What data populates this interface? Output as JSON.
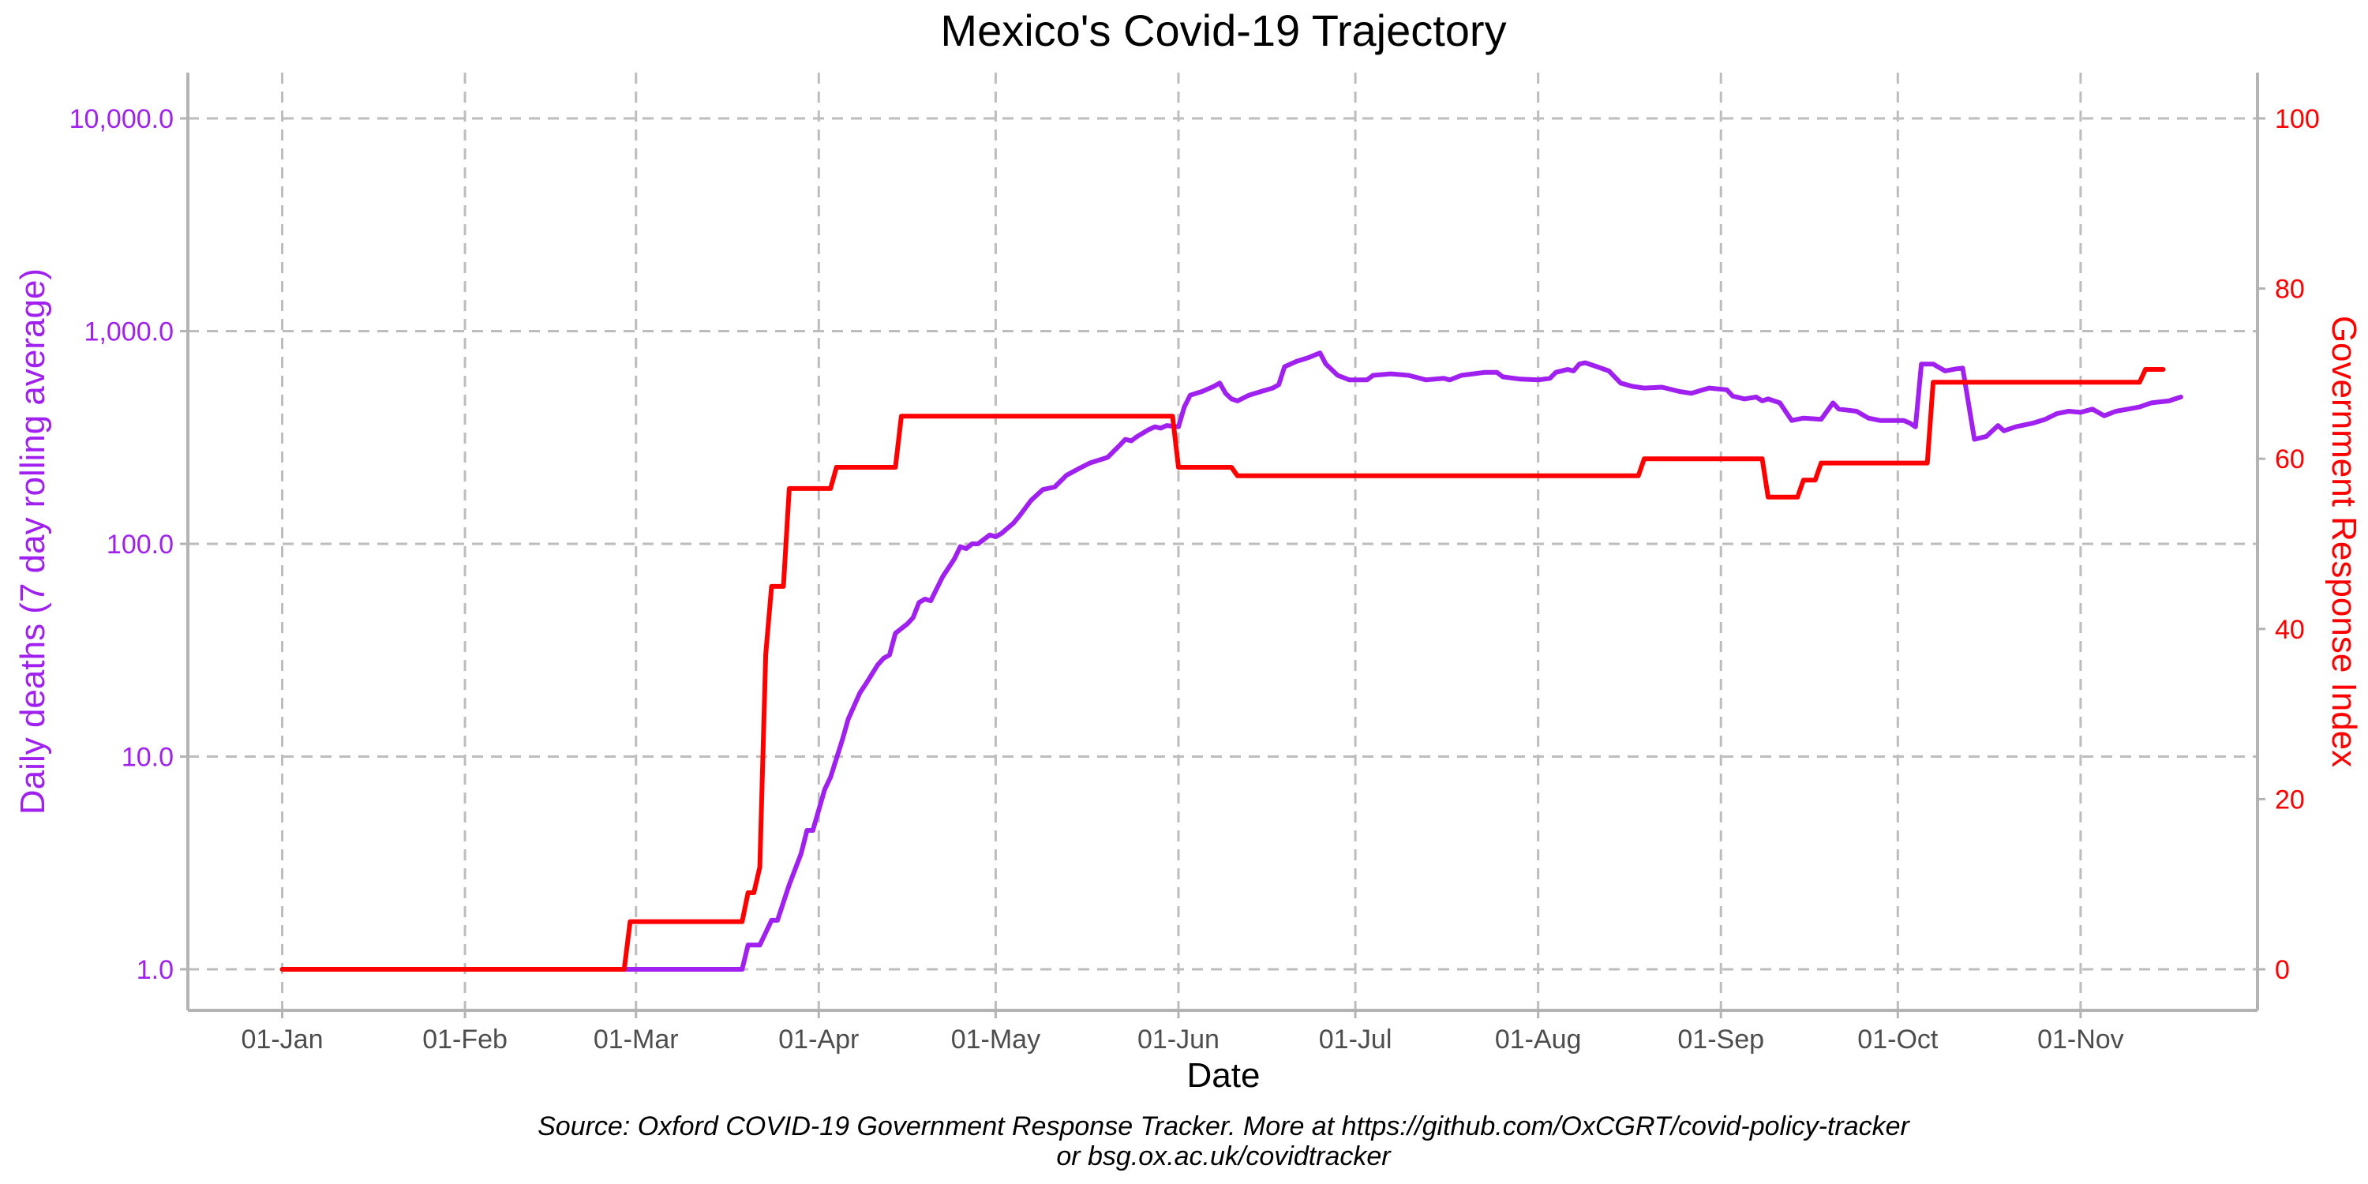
{
  "chart_data": {
    "type": "line",
    "title": "Mexico's Covid-19 Trajectory",
    "xlabel": "Date",
    "ylabel_left": "Daily deaths (7 day rolling average)",
    "ylabel_right": "Government Response Index",
    "caption_line1": "Source: Oxford COVID-19 Government Response Tracker. More at https://github.com/OxCGRT/covid-policy-tracker",
    "caption_line2": "or bsg.ox.ac.uk/covidtracker",
    "x_ticks": [
      "01-Jan",
      "01-Feb",
      "01-Mar",
      "01-Apr",
      "01-May",
      "01-Jun",
      "01-Jul",
      "01-Aug",
      "01-Sep",
      "01-Oct",
      "01-Nov"
    ],
    "left_ticks": [
      "1.0",
      "10.0",
      "100.0",
      "1,000.0",
      "10,000.0"
    ],
    "right_ticks": [
      "0",
      "20",
      "40",
      "60",
      "80",
      "100"
    ],
    "left_scale": "log10",
    "left_ylim": [
      1,
      10000
    ],
    "right_ylim": [
      0,
      100
    ],
    "xlim": [
      "2019-12-16",
      "2020-12-01"
    ],
    "grid": true,
    "colors": {
      "deaths": "#a020f0",
      "index": "#ff0000",
      "grid": "#bdbdbd",
      "axis": "#b3b3b3"
    },
    "series": [
      {
        "axis": "left",
        "points": [
          [
            "2020-02-28",
            1
          ],
          [
            "2020-03-19",
            1
          ],
          [
            "2020-03-20",
            1.3
          ],
          [
            "2020-03-22",
            1.3
          ],
          [
            "2020-03-24",
            1.7
          ],
          [
            "2020-03-25",
            1.7
          ],
          [
            "2020-03-27",
            2.5
          ],
          [
            "2020-03-29",
            3.5
          ],
          [
            "2020-03-30",
            4.5
          ],
          [
            "2020-03-31",
            4.5
          ],
          [
            "2020-04-02",
            7
          ],
          [
            "2020-04-03",
            8
          ],
          [
            "2020-04-05",
            12
          ],
          [
            "2020-04-06",
            15
          ],
          [
            "2020-04-08",
            20
          ],
          [
            "2020-04-09",
            22
          ],
          [
            "2020-04-11",
            27
          ],
          [
            "2020-04-12",
            29
          ],
          [
            "2020-04-13",
            30
          ],
          [
            "2020-04-14",
            38
          ],
          [
            "2020-04-16",
            42
          ],
          [
            "2020-04-17",
            45
          ],
          [
            "2020-04-18",
            53
          ],
          [
            "2020-04-19",
            55
          ],
          [
            "2020-04-20",
            54
          ],
          [
            "2020-04-22",
            70
          ],
          [
            "2020-04-24",
            85
          ],
          [
            "2020-04-25",
            97
          ],
          [
            "2020-04-26",
            95
          ],
          [
            "2020-04-27",
            100
          ],
          [
            "2020-04-28",
            100
          ],
          [
            "2020-04-29",
            105
          ],
          [
            "2020-04-30",
            110
          ],
          [
            "2020-05-01",
            108
          ],
          [
            "2020-05-02",
            112
          ],
          [
            "2020-05-04",
            125
          ],
          [
            "2020-05-05",
            135
          ],
          [
            "2020-05-07",
            160
          ],
          [
            "2020-05-09",
            180
          ],
          [
            "2020-05-11",
            185
          ],
          [
            "2020-05-13",
            210
          ],
          [
            "2020-05-15",
            225
          ],
          [
            "2020-05-17",
            240
          ],
          [
            "2020-05-19",
            250
          ],
          [
            "2020-05-20",
            255
          ],
          [
            "2020-05-22",
            290
          ],
          [
            "2020-05-23",
            310
          ],
          [
            "2020-05-24",
            305
          ],
          [
            "2020-05-25",
            320
          ],
          [
            "2020-05-27",
            345
          ],
          [
            "2020-05-28",
            355
          ],
          [
            "2020-05-29",
            350
          ],
          [
            "2020-05-30",
            360
          ],
          [
            "2020-06-01",
            355
          ],
          [
            "2020-06-02",
            440
          ],
          [
            "2020-06-03",
            500
          ],
          [
            "2020-06-05",
            520
          ],
          [
            "2020-06-07",
            550
          ],
          [
            "2020-06-08",
            570
          ],
          [
            "2020-06-09",
            510
          ],
          [
            "2020-06-10",
            480
          ],
          [
            "2020-06-11",
            470
          ],
          [
            "2020-06-13",
            500
          ],
          [
            "2020-06-15",
            520
          ],
          [
            "2020-06-17",
            540
          ],
          [
            "2020-06-18",
            560
          ],
          [
            "2020-06-19",
            680
          ],
          [
            "2020-06-21",
            720
          ],
          [
            "2020-06-23",
            750
          ],
          [
            "2020-06-25",
            790
          ],
          [
            "2020-06-26",
            700
          ],
          [
            "2020-06-28",
            620
          ],
          [
            "2020-06-30",
            590
          ],
          [
            "2020-07-03",
            590
          ],
          [
            "2020-07-04",
            620
          ],
          [
            "2020-07-07",
            630
          ],
          [
            "2020-07-10",
            620
          ],
          [
            "2020-07-11",
            610
          ],
          [
            "2020-07-13",
            590
          ],
          [
            "2020-07-16",
            600
          ],
          [
            "2020-07-17",
            590
          ],
          [
            "2020-07-19",
            620
          ],
          [
            "2020-07-21",
            630
          ],
          [
            "2020-07-23",
            640
          ],
          [
            "2020-07-25",
            640
          ],
          [
            "2020-07-26",
            610
          ],
          [
            "2020-07-29",
            595
          ],
          [
            "2020-08-01",
            590
          ],
          [
            "2020-08-03",
            600
          ],
          [
            "2020-08-04",
            640
          ],
          [
            "2020-08-06",
            660
          ],
          [
            "2020-08-07",
            650
          ],
          [
            "2020-08-08",
            700
          ],
          [
            "2020-08-09",
            710
          ],
          [
            "2020-08-11",
            680
          ],
          [
            "2020-08-13",
            650
          ],
          [
            "2020-08-15",
            570
          ],
          [
            "2020-08-17",
            550
          ],
          [
            "2020-08-19",
            540
          ],
          [
            "2020-08-22",
            545
          ],
          [
            "2020-08-25",
            520
          ],
          [
            "2020-08-27",
            510
          ],
          [
            "2020-08-29",
            530
          ],
          [
            "2020-08-30",
            540
          ],
          [
            "2020-09-02",
            530
          ],
          [
            "2020-09-03",
            495
          ],
          [
            "2020-09-05",
            480
          ],
          [
            "2020-09-07",
            490
          ],
          [
            "2020-09-08",
            470
          ],
          [
            "2020-09-09",
            480
          ],
          [
            "2020-09-11",
            460
          ],
          [
            "2020-09-13",
            380
          ],
          [
            "2020-09-15",
            390
          ],
          [
            "2020-09-18",
            385
          ],
          [
            "2020-09-20",
            460
          ],
          [
            "2020-09-21",
            430
          ],
          [
            "2020-09-24",
            420
          ],
          [
            "2020-09-26",
            390
          ],
          [
            "2020-09-28",
            380
          ],
          [
            "2020-10-02",
            380
          ],
          [
            "2020-10-03",
            370
          ],
          [
            "2020-10-04",
            355
          ],
          [
            "2020-10-05",
            700
          ],
          [
            "2020-10-07",
            700
          ],
          [
            "2020-10-09",
            650
          ],
          [
            "2020-10-11",
            665
          ],
          [
            "2020-10-12",
            670
          ],
          [
            "2020-10-14",
            310
          ],
          [
            "2020-10-16",
            320
          ],
          [
            "2020-10-18",
            360
          ],
          [
            "2020-10-19",
            340
          ],
          [
            "2020-10-21",
            355
          ],
          [
            "2020-10-24",
            370
          ],
          [
            "2020-10-26",
            385
          ],
          [
            "2020-10-28",
            410
          ],
          [
            "2020-10-30",
            420
          ],
          [
            "2020-11-01",
            415
          ],
          [
            "2020-11-03",
            430
          ],
          [
            "2020-11-05",
            400
          ],
          [
            "2020-11-07",
            420
          ],
          [
            "2020-11-09",
            430
          ],
          [
            "2020-11-11",
            440
          ],
          [
            "2020-11-13",
            460
          ],
          [
            "2020-11-16",
            470
          ],
          [
            "2020-11-17",
            480
          ],
          [
            "2020-11-18",
            490
          ]
        ]
      },
      {
        "axis": "right",
        "points": [
          [
            "2020-01-01",
            0
          ],
          [
            "2020-02-28",
            0
          ],
          [
            "2020-02-29",
            5.6
          ],
          [
            "2020-03-19",
            5.6
          ],
          [
            "2020-03-20",
            9
          ],
          [
            "2020-03-21",
            9
          ],
          [
            "2020-03-22",
            12
          ],
          [
            "2020-03-23",
            37
          ],
          [
            "2020-03-24",
            45
          ],
          [
            "2020-03-26",
            45
          ],
          [
            "2020-03-27",
            56.5
          ],
          [
            "2020-04-03",
            56.5
          ],
          [
            "2020-04-04",
            59
          ],
          [
            "2020-04-14",
            59
          ],
          [
            "2020-04-15",
            65
          ],
          [
            "2020-05-31",
            65
          ],
          [
            "2020-06-01",
            59
          ],
          [
            "2020-06-10",
            59
          ],
          [
            "2020-06-11",
            58
          ],
          [
            "2020-08-18",
            58
          ],
          [
            "2020-08-19",
            60
          ],
          [
            "2020-09-08",
            60
          ],
          [
            "2020-09-09",
            55.5
          ],
          [
            "2020-09-14",
            55.5
          ],
          [
            "2020-09-15",
            57.5
          ],
          [
            "2020-09-17",
            57.5
          ],
          [
            "2020-09-18",
            59.5
          ],
          [
            "2020-10-06",
            59.5
          ],
          [
            "2020-10-07",
            69
          ],
          [
            "2020-11-11",
            69
          ],
          [
            "2020-11-12",
            70.5
          ],
          [
            "2020-11-15",
            70.5
          ]
        ]
      }
    ]
  }
}
